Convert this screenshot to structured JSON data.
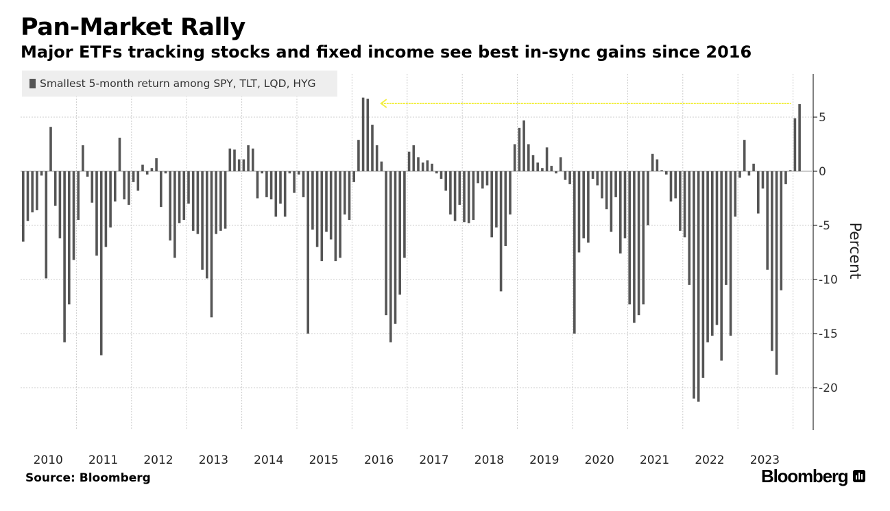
{
  "header": {
    "title": "Pan-Market Rally",
    "subtitle": "Major ETFs tracking stocks and fixed income see best in-sync gains since 2016"
  },
  "footer": {
    "source": "Source: Bloomberg",
    "brand": "Bloomberg",
    "brand_icon": "bloomberg-terminal-icon"
  },
  "colors": {
    "bar": "#555555",
    "arrow": "#f2ef45",
    "grid": "#cccccc",
    "legend_bg": "#eeeeee"
  },
  "chart_data": {
    "type": "bar",
    "title": "Pan-Market Rally",
    "subtitle": "Major ETFs tracking stocks and fixed income see best in-sync gains since 2016",
    "ylabel": "Percent",
    "ylim": [
      -24,
      9
    ],
    "yticks": [
      5,
      0,
      -5,
      -10,
      -15,
      -20
    ],
    "ytick_labels": [
      "5",
      "0",
      "-5",
      "-10",
      "-15",
      "-20"
    ],
    "year_labels": [
      "2010",
      "2011",
      "2012",
      "2013",
      "2014",
      "2015",
      "2016",
      "2017",
      "2018",
      "2019",
      "2020",
      "2021",
      "2022",
      "2023"
    ],
    "x_start": "2010-01",
    "x_end": "2024-05",
    "grid": "vertical dotted at year boundaries",
    "legend_position": "top-left",
    "annotation": "yellow arrow pointing from latest bar back to 2016 peak",
    "series": [
      {
        "name": "Smallest 5-month return among SPY, TLT, LQD, HYG",
        "values": [
          -6.5,
          -4.6,
          -3.8,
          -3.6,
          -0.4,
          -9.9,
          4.1,
          -3.2,
          -6.2,
          -15.8,
          -12.3,
          -8.2,
          -4.5,
          2.4,
          -0.5,
          -2.9,
          -7.8,
          -17.0,
          -7.0,
          -5.2,
          -2.8,
          3.1,
          -2.6,
          -3.1,
          -1.0,
          -1.8,
          0.6,
          -0.3,
          0.3,
          1.2,
          -3.3,
          -0.2,
          -6.4,
          -8.0,
          -4.8,
          -4.5,
          -3.0,
          -5.5,
          -5.8,
          -9.1,
          -9.9,
          -13.5,
          -5.8,
          -5.5,
          -5.3,
          2.1,
          2.0,
          1.1,
          1.1,
          2.4,
          2.1,
          -2.5,
          -0.2,
          -2.4,
          -2.6,
          -4.2,
          -3.0,
          -4.2,
          -0.2,
          -2.0,
          -0.3,
          -2.4,
          -15.0,
          -5.4,
          -7.0,
          -8.3,
          -5.6,
          -6.3,
          -8.3,
          -8.0,
          -4.0,
          -4.5,
          -1.0,
          2.9,
          6.8,
          6.7,
          4.3,
          2.4,
          0.9,
          -13.3,
          -15.8,
          -14.1,
          -11.4,
          -8.0,
          1.8,
          2.4,
          1.3,
          0.8,
          1.0,
          0.7,
          -0.2,
          -0.7,
          -1.8,
          -4.0,
          -4.6,
          -3.1,
          -4.7,
          -4.8,
          -4.5,
          -1.1,
          -1.6,
          -1.3,
          -6.1,
          -5.2,
          -11.1,
          -6.9,
          -4.0,
          2.5,
          4.0,
          4.7,
          2.5,
          1.5,
          0.8,
          0.3,
          2.2,
          0.5,
          -0.2,
          1.3,
          -0.8,
          -1.2,
          -15.0,
          -7.5,
          -6.2,
          -6.6,
          -0.7,
          -1.3,
          -2.5,
          -3.5,
          -5.6,
          -2.4,
          -7.6,
          -6.2,
          -12.3,
          -14.0,
          -13.3,
          -12.3,
          -5.0,
          1.6,
          1.1,
          0.1,
          -0.3,
          -2.8,
          -2.5,
          -5.5,
          -6.1,
          -10.5,
          -21.0,
          -21.3,
          -19.1,
          -15.8,
          -15.2,
          -14.2,
          -17.5,
          -10.5,
          -15.2,
          -4.2,
          -0.6,
          2.9,
          -0.4,
          0.7,
          -3.9,
          -1.6,
          -9.1,
          -16.6,
          -18.8,
          -11.0,
          -1.2,
          0.1,
          4.9,
          6.2
        ]
      }
    ]
  }
}
